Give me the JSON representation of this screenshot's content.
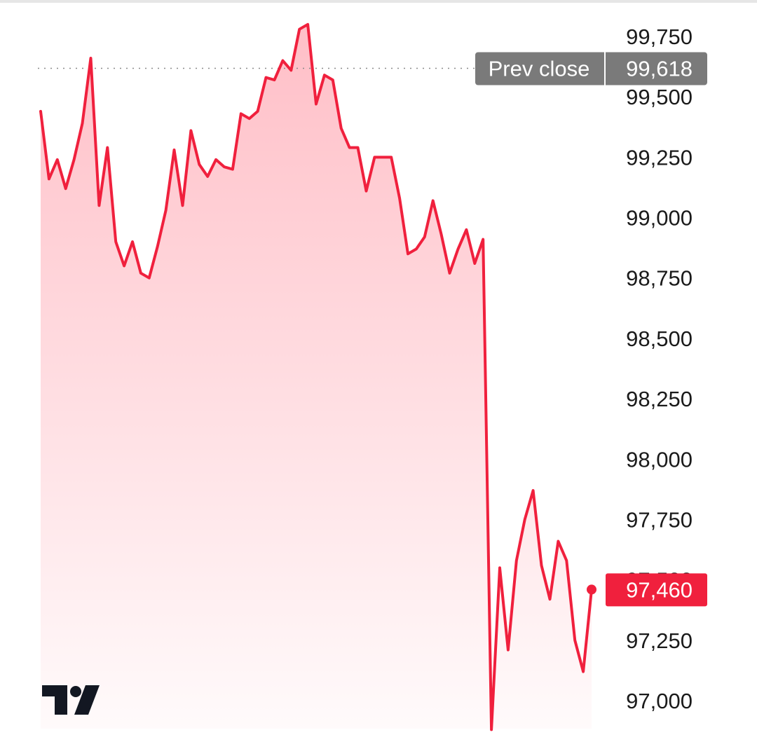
{
  "chart_data": {
    "type": "area",
    "title": "",
    "xlabel": "",
    "ylabel": "",
    "ylim": [
      96880,
      99800
    ],
    "y_ticks": [
      99750,
      99500,
      99250,
      99000,
      98750,
      98500,
      98250,
      98000,
      97750,
      97500,
      97250,
      97000
    ],
    "y_tick_labels": [
      "99,750",
      "99,500",
      "99,250",
      "99,000",
      "98,750",
      "98,500",
      "98,250",
      "98,000",
      "97,750",
      "97,500",
      "97,250",
      "97,000"
    ],
    "series": [
      {
        "values": [
          99440,
          99160,
          99240,
          99120,
          99240,
          99390,
          99660,
          99050,
          99290,
          98900,
          98800,
          98900,
          98770,
          98750,
          98880,
          99030,
          99280,
          99050,
          99360,
          99220,
          99170,
          99240,
          99210,
          99200,
          99430,
          99410,
          99440,
          99580,
          99570,
          99650,
          99610,
          99780,
          99800,
          99470,
          99590,
          99570,
          99370,
          99290,
          99290,
          99110,
          99250,
          99250,
          99250,
          99080,
          98850,
          98870,
          98920,
          99070,
          98930,
          98770,
          98870,
          98950,
          98810,
          98910,
          96880,
          97550,
          97210,
          97580,
          97750,
          97870,
          97560,
          97420,
          97660,
          97580,
          97250,
          97120,
          97460
        ]
      }
    ],
    "line_color": "#f0203d",
    "fill_color": "#ff8a99",
    "grid": false,
    "prev_close": {
      "label": "Prev close",
      "value": 99618,
      "value_label": "99,618",
      "badge_color": "#7a7a7a"
    },
    "last_price": {
      "value": 97460,
      "value_label": "97,460",
      "badge_color": "#f0203d"
    }
  },
  "logo": {
    "icon": "tradingview-logo-icon"
  }
}
